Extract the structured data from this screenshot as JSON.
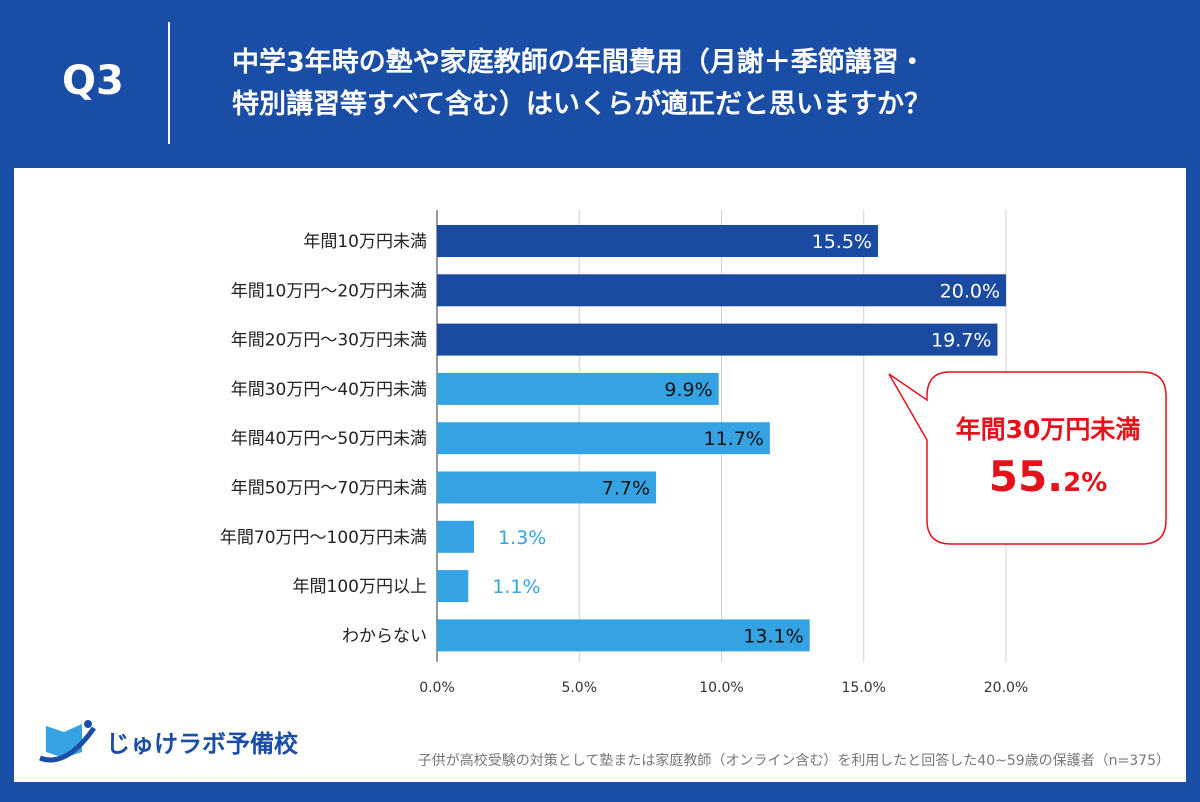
{
  "header": {
    "q_label": "Q3",
    "title_line1": "中学3年時の塾や家庭教師の年間費用（月謝＋季節講習・",
    "title_line2": "特別講習等すべて含む）はいくらが適正だと思いますか？"
  },
  "chart_data": {
    "type": "bar",
    "orientation": "horizontal",
    "categories": [
      "年間10万円未満",
      "年間10万円〜20万円未満",
      "年間20万円〜30万円未満",
      "年間30万円〜40万円未満",
      "年間40万円〜50万円未満",
      "年間50万円〜70万円未満",
      "年間70万円〜100万円未満",
      "年間100万円以上",
      "わからない"
    ],
    "values": [
      15.5,
      20.0,
      19.7,
      9.9,
      11.7,
      7.7,
      1.3,
      1.1,
      13.1
    ],
    "labels": [
      "15.5%",
      "20.0%",
      "19.7%",
      "9.9%",
      "11.7%",
      "7.7%",
      "1.3%",
      "1.1%",
      "13.1%"
    ],
    "xlim": [
      0,
      20
    ],
    "ticks": [
      "0.0%",
      "5.0%",
      "10.0%",
      "15.0%",
      "20.0%"
    ],
    "grid": true,
    "colors": {
      "highlight": "#1a4ba0",
      "normal": "#35a3e3"
    }
  },
  "callout": {
    "title": "年間30万円未満",
    "value_main": "55.",
    "value_small": "2%",
    "color": "#e8101a"
  },
  "footer": {
    "logo_text": "じゅけラボ予備校",
    "note": "子供が高校受験の対策として塾または家庭教師（オンライン含む）を利用したと回答した40~59歳の保護者（n=375）"
  }
}
